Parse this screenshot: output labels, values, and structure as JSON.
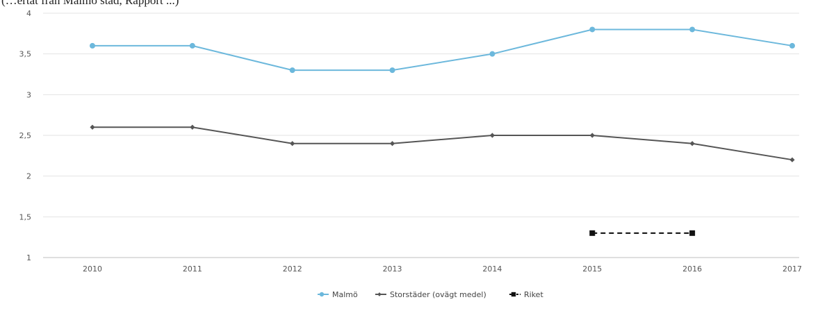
{
  "caption": "(…ertat från Malmö stad, Rapport ...) ",
  "chart_data": {
    "type": "line",
    "title": "",
    "xlabel": "",
    "ylabel": "",
    "categories": [
      "2010",
      "2011",
      "2012",
      "2013",
      "2014",
      "2015",
      "2016",
      "2017"
    ],
    "ylim": [
      1,
      4
    ],
    "yticks": [
      "1",
      "1,5",
      "2",
      "2,5",
      "3",
      "3,5",
      "4"
    ],
    "ytick_values": [
      1,
      1.5,
      2,
      2.5,
      3,
      3.5,
      4
    ],
    "grid": "horizontal",
    "legend_position": "bottom",
    "series": [
      {
        "name": "Malmö",
        "color": "#6cb8dc",
        "marker": "circle",
        "dash": "solid",
        "values": [
          3.6,
          3.6,
          3.3,
          3.3,
          3.5,
          3.8,
          3.8,
          3.6
        ]
      },
      {
        "name": "Storstäder (ovägt medel)",
        "color": "#555555",
        "marker": "diamond",
        "dash": "solid",
        "values": [
          2.6,
          2.6,
          2.4,
          2.4,
          2.5,
          2.5,
          2.4,
          2.2
        ]
      },
      {
        "name": "Riket",
        "color": "#111111",
        "marker": "square",
        "dash": "dashed",
        "values": [
          null,
          null,
          null,
          null,
          null,
          1.3,
          1.3,
          null
        ]
      }
    ]
  }
}
